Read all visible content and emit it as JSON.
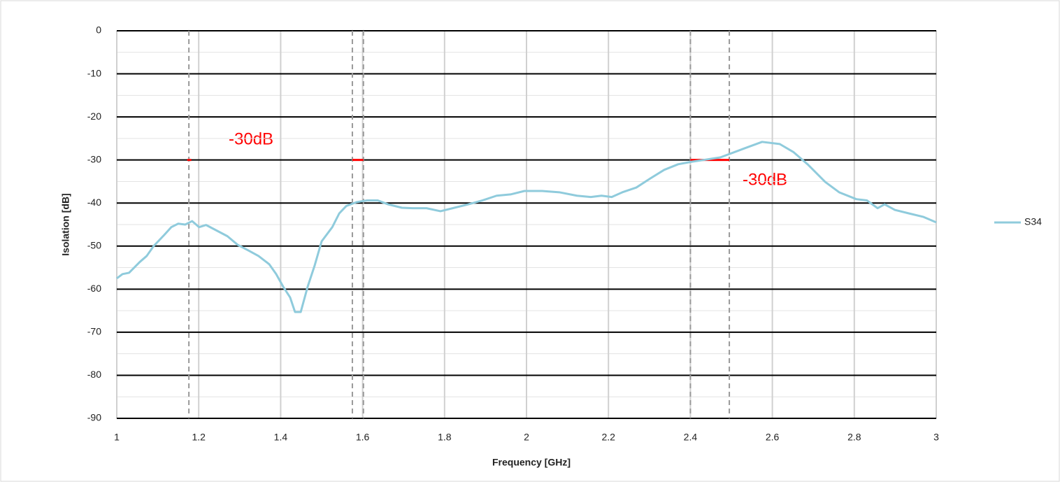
{
  "chart_data": {
    "type": "line",
    "xlabel": "Frequency [GHz]",
    "ylabel": "Isolation [dB]",
    "xlim": [
      1,
      3
    ],
    "xticks": [
      1,
      1.2,
      1.4,
      1.6,
      1.8,
      2,
      2.2,
      2.4,
      2.6,
      2.8,
      3
    ],
    "ylim": [
      -90,
      0
    ],
    "yticks": [
      0,
      -10,
      -20,
      -30,
      -40,
      -50,
      -60,
      -70,
      -80,
      -90
    ],
    "yminor_ticks": [
      -5,
      -15,
      -25,
      -35,
      -45,
      -55,
      -65,
      -75,
      -85
    ],
    "grid": true,
    "legend": "right",
    "markers": [
      1.176,
      1.575,
      1.602,
      2.4,
      2.495
    ],
    "threshold": {
      "value": -30,
      "color": "#ff0000",
      "segments": [
        [
          1.172,
          1.182
        ],
        [
          1.575,
          1.602
        ],
        [
          2.4,
          2.495
        ]
      ]
    },
    "annotations": [
      "-30dB",
      "-30dB"
    ],
    "x": [
      1.0,
      1.014,
      1.03,
      1.056,
      1.073,
      1.09,
      1.116,
      1.133,
      1.15,
      1.167,
      1.184,
      1.201,
      1.218,
      1.244,
      1.27,
      1.295,
      1.321,
      1.346,
      1.372,
      1.389,
      1.406,
      1.423,
      1.435,
      1.449,
      1.466,
      1.483,
      1.5,
      1.526,
      1.543,
      1.56,
      1.585,
      1.611,
      1.637,
      1.662,
      1.696,
      1.722,
      1.756,
      1.79,
      1.824,
      1.858,
      1.892,
      1.927,
      1.961,
      1.995,
      2.038,
      2.08,
      2.123,
      2.157,
      2.183,
      2.208,
      2.234,
      2.268,
      2.302,
      2.336,
      2.37,
      2.404,
      2.439,
      2.473,
      2.507,
      2.532,
      2.575,
      2.618,
      2.652,
      2.686,
      2.729,
      2.763,
      2.805,
      2.831,
      2.857,
      2.874,
      2.899,
      2.933,
      2.968,
      3.0
    ],
    "series": [
      {
        "name": "S34",
        "color": "#8fcbdc",
        "values": [
          -57.5,
          -56.5,
          -56.2,
          -53.7,
          -52.3,
          -50,
          -47.4,
          -45.6,
          -44.8,
          -45,
          -44.2,
          -45.6,
          -45.1,
          -46.4,
          -47.7,
          -49.7,
          -51,
          -52.3,
          -54.2,
          -56.5,
          -59.4,
          -61.9,
          -65.3,
          -65.3,
          -59.4,
          -54.5,
          -48.9,
          -45.6,
          -42.4,
          -40.7,
          -39.8,
          -39.4,
          -39.4,
          -40.3,
          -41.1,
          -41.2,
          -41.2,
          -41.9,
          -41.1,
          -40.3,
          -39.4,
          -38.3,
          -38,
          -37.2,
          -37.2,
          -37.5,
          -38.3,
          -38.6,
          -38.3,
          -38.6,
          -37.5,
          -36.4,
          -34.3,
          -32.3,
          -31,
          -30.4,
          -29.9,
          -29.4,
          -28.2,
          -27.3,
          -25.8,
          -26.3,
          -28.2,
          -31,
          -35.1,
          -37.5,
          -39.1,
          -39.4,
          -41.2,
          -40.3,
          -41.6,
          -42.4,
          -43.2,
          -44.5
        ]
      }
    ]
  }
}
